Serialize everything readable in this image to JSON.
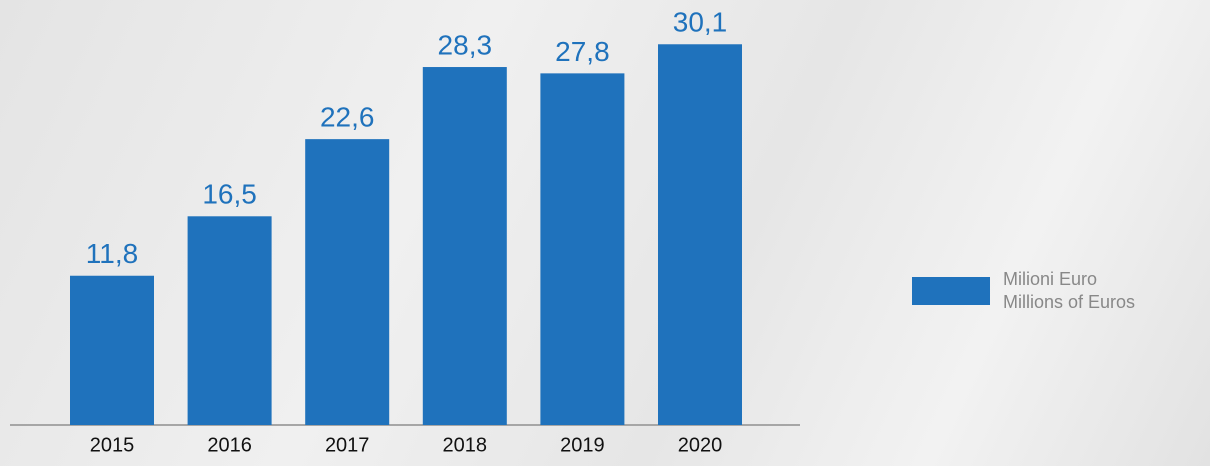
{
  "chart_data": {
    "type": "bar",
    "categories": [
      "2015",
      "2016",
      "2017",
      "2018",
      "2019",
      "2020"
    ],
    "series": [
      {
        "name": "Milioni Euro\nMillions of Euros",
        "color": "#1f72bc",
        "values": [
          11.8,
          16.5,
          22.6,
          28.3,
          27.8,
          30.1
        ],
        "value_labels": [
          "11,8",
          "16,5",
          "22,6",
          "28,3",
          "27,8",
          "30,1"
        ]
      }
    ],
    "ylim": [
      0,
      33.6
    ],
    "legend": "right"
  }
}
